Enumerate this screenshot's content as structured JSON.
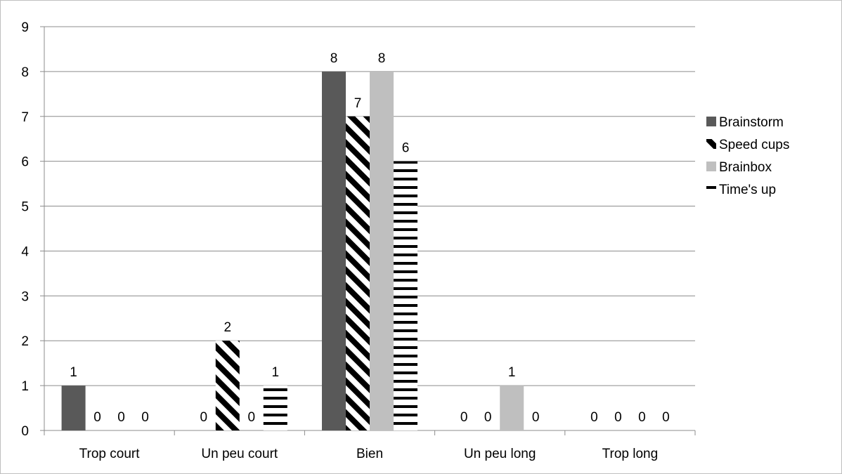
{
  "chart_data": {
    "type": "bar",
    "categories": [
      "Trop court",
      "Un peu court",
      "Bien",
      "Un peu long",
      "Trop long"
    ],
    "series": [
      {
        "name": "Brainstorm",
        "values": [
          1,
          0,
          8,
          0,
          0
        ],
        "color": "#595959",
        "pattern": "solid"
      },
      {
        "name": "Speed cups",
        "values": [
          0,
          2,
          7,
          0,
          0
        ],
        "color": "#000000",
        "pattern": "diagonal-stripes"
      },
      {
        "name": "Brainbox",
        "values": [
          0,
          0,
          8,
          1,
          0
        ],
        "color": "#bfbfbf",
        "pattern": "solid"
      },
      {
        "name": "Time's up",
        "values": [
          0,
          1,
          6,
          0,
          0
        ],
        "color": "#000000",
        "pattern": "horizontal-stripes"
      }
    ],
    "ylim": [
      0,
      9
    ],
    "yticks": [
      0,
      1,
      2,
      3,
      4,
      5,
      6,
      7,
      8,
      9
    ],
    "grid": true,
    "legend": "right",
    "data_labels": true
  }
}
